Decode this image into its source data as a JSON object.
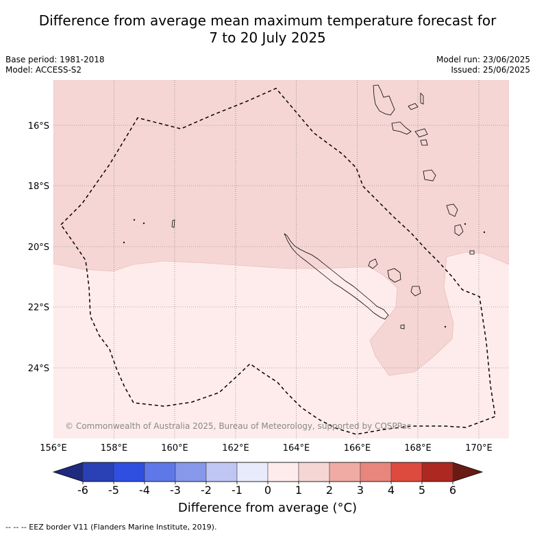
{
  "title": {
    "line1": "Difference from average mean maximum temperature forecast for",
    "line2": "7 to 20 July 2025"
  },
  "meta": {
    "base_period": "Base period: 1981-2018",
    "model": "Model: ACCESS-S2",
    "model_run": "Model run: 23/06/2025",
    "issued": "Issued: 25/06/2025"
  },
  "map": {
    "lon_labels": [
      "156°E",
      "158°E",
      "160°E",
      "162°E",
      "164°E",
      "166°E",
      "168°E",
      "170°E"
    ],
    "lat_labels": [
      "16°S",
      "18°S",
      "20°S",
      "22°S",
      "24°S"
    ],
    "credit": "© Commonwealth of Australia 2025, Bureau of Meteorology, supported by COSPPac",
    "colors": {
      "anomaly_0_1": "#fdeceb",
      "anomaly_1_2": "#f5d6d4",
      "eez_border": "#000000",
      "coastline": "#000000"
    }
  },
  "colorbar": {
    "ticks": [
      "-6",
      "-5",
      "-4",
      "-3",
      "-2",
      "-1",
      "0",
      "1",
      "2",
      "3",
      "4",
      "5",
      "6"
    ],
    "colors": [
      "#1e2a7e",
      "#2a40b5",
      "#2f4fe0",
      "#5f78e8",
      "#8797ea",
      "#c0c6f4",
      "#e8ebfb",
      "#fdeceb",
      "#f5d6d4",
      "#f0aba4",
      "#e8867e",
      "#dd4a3e",
      "#ac2820",
      "#6a1a14"
    ],
    "label": "Difference from average (°C)"
  },
  "footnote": "-- -- -- EEZ border V11 (Flanders Marine Institute, 2019)."
}
